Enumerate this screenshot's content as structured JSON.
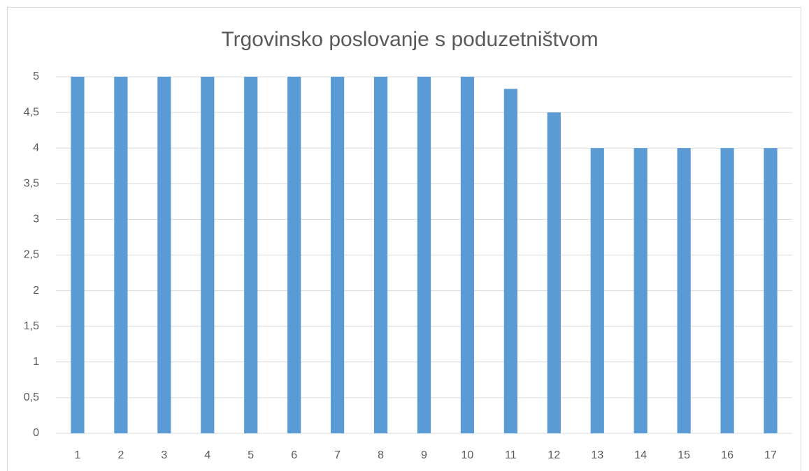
{
  "chart_data": {
    "type": "bar",
    "title": "Trgovinsko poslovanje s poduzetništvom",
    "categories": [
      "1",
      "2",
      "3",
      "4",
      "5",
      "6",
      "7",
      "8",
      "9",
      "10",
      "11",
      "12",
      "13",
      "14",
      "15",
      "16",
      "17"
    ],
    "values": [
      5,
      5,
      5,
      5,
      5,
      5,
      5,
      5,
      5,
      5,
      4.83,
      4.5,
      4,
      4,
      4,
      4,
      4
    ],
    "color": "#5b9bd5",
    "ylim": [
      0,
      5
    ],
    "yticks": [
      0,
      {
        "value": 0.5,
        "label": "0,5"
      },
      1,
      {
        "value": 1.5,
        "label": "1,5"
      },
      2,
      {
        "value": 2.5,
        "label": "2,5"
      },
      3,
      {
        "value": 3.5,
        "label": "3,5"
      },
      4,
      {
        "value": 4.5,
        "label": "4,5"
      },
      5
    ],
    "grid": true
  }
}
